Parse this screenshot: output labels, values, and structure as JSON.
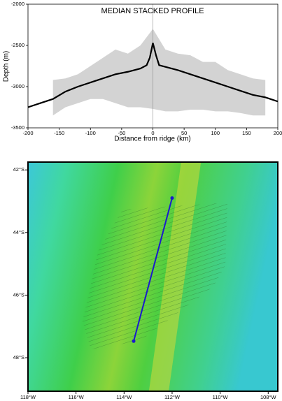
{
  "chart_data": [
    {
      "type": "line",
      "title": "MEDIAN STACKED PROFILE",
      "xlabel": "Distance from ridge (km)",
      "ylabel": "Depth (m)",
      "xlim": [
        -200,
        200
      ],
      "xticks": [
        -200,
        -150,
        -100,
        -50,
        0,
        50,
        100,
        150,
        200
      ],
      "ylim": [
        -3500,
        -2000
      ],
      "yticks": [
        -2000,
        -2500,
        -3000,
        -3500
      ],
      "x": [
        -200,
        -180,
        -160,
        -140,
        -120,
        -100,
        -80,
        -60,
        -40,
        -20,
        -10,
        -5,
        0,
        5,
        10,
        20,
        40,
        60,
        80,
        100,
        120,
        140,
        160,
        180,
        200
      ],
      "series": [
        {
          "color": "#000000",
          "values": [
            -3250,
            -3200,
            -3150,
            -3060,
            -3000,
            -2950,
            -2900,
            -2850,
            -2820,
            -2780,
            -2740,
            -2650,
            -2470,
            -2620,
            -2740,
            -2760,
            -2800,
            -2850,
            -2900,
            -2950,
            -3000,
            -3050,
            -3100,
            -3130,
            -3180
          ]
        }
      ],
      "band": {
        "color": "#d3d3d3",
        "x": [
          -160,
          -140,
          -120,
          -100,
          -80,
          -60,
          -40,
          -20,
          0,
          20,
          40,
          60,
          80,
          100,
          120,
          140,
          160,
          180
        ],
        "upper": [
          -2920,
          -2900,
          -2850,
          -2750,
          -2650,
          -2550,
          -2600,
          -2500,
          -2300,
          -2550,
          -2600,
          -2620,
          -2700,
          -2700,
          -2800,
          -2850,
          -2900,
          -2920
        ],
        "lower": [
          -3350,
          -3250,
          -3200,
          -3150,
          -3150,
          -3200,
          -3250,
          -3250,
          -3270,
          -3300,
          -3300,
          -3280,
          -3280,
          -3300,
          -3300,
          -3320,
          -3350,
          -3350
        ]
      }
    },
    {
      "type": "map",
      "xlim": [
        -118,
        -107.6
      ],
      "ylim": [
        -49.07,
        -41.75
      ],
      "xticks": [
        {
          "value": -118,
          "label": "118°W"
        },
        {
          "value": -116,
          "label": "116°W"
        },
        {
          "value": -114,
          "label": "114°W"
        },
        {
          "value": -112,
          "label": "112°W"
        },
        {
          "value": -110,
          "label": "110°W"
        },
        {
          "value": -108,
          "label": "108°W"
        }
      ],
      "yticks": [
        {
          "value": -42,
          "label": "42°S"
        },
        {
          "value": -44,
          "label": "44°S"
        },
        {
          "value": -46,
          "label": "46°S"
        },
        {
          "value": -48,
          "label": "48°S"
        }
      ],
      "track": {
        "color": "#1a1acc",
        "x": [
          -112.0,
          -113.6
        ],
        "y": [
          -42.9,
          -47.47
        ]
      }
    }
  ]
}
